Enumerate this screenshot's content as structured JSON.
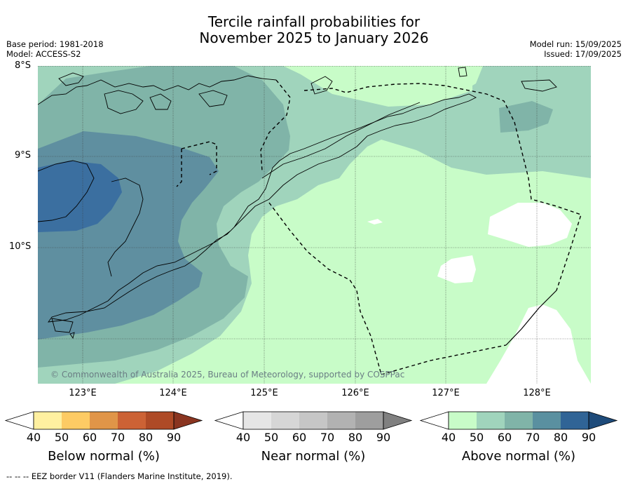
{
  "title_line1": "Tercile rainfall probabilities for",
  "title_line2": "November 2025 to January 2026",
  "base_period": "Base period: 1981-2018",
  "model": "Model: ACCESS-S2",
  "model_run": "Model run: 15/09/2025",
  "issued": "Issued: 17/09/2025",
  "map": {
    "lat_ticks": [
      "8°S",
      "9°S",
      "10°S"
    ],
    "lon_ticks": [
      "123°E",
      "124°E",
      "125°E",
      "126°E",
      "127°E",
      "128°E"
    ],
    "copyright": "© Commonwealth of Australia 2025, Bureau of Meteorology, supported by COSPPac"
  },
  "colorbars": [
    {
      "title": "Below normal (%)",
      "ticks": [
        "40",
        "50",
        "60",
        "70",
        "80",
        "90"
      ],
      "colors": [
        "#ffffff",
        "#fff0a0",
        "#fdcb64",
        "#e09548",
        "#cc6235",
        "#ae4a26",
        "#8a3520"
      ]
    },
    {
      "title": "Near normal (%)",
      "ticks": [
        "40",
        "50",
        "60",
        "70",
        "80",
        "90"
      ],
      "colors": [
        "#ffffff",
        "#e6e6e6",
        "#d6d6d6",
        "#c6c6c6",
        "#b2b2b2",
        "#9e9e9e",
        "#808080"
      ]
    },
    {
      "title": "Above normal (%)",
      "ticks": [
        "40",
        "50",
        "60",
        "70",
        "80",
        "90"
      ],
      "colors": [
        "#ffffff",
        "#c8fcc8",
        "#a0d4bc",
        "#80b4a8",
        "#5a90a0",
        "#306496",
        "#1e4b7a"
      ]
    }
  ],
  "footer": "--  --  -- EEZ border V11 (Flanders Marine Institute, 2019)."
}
